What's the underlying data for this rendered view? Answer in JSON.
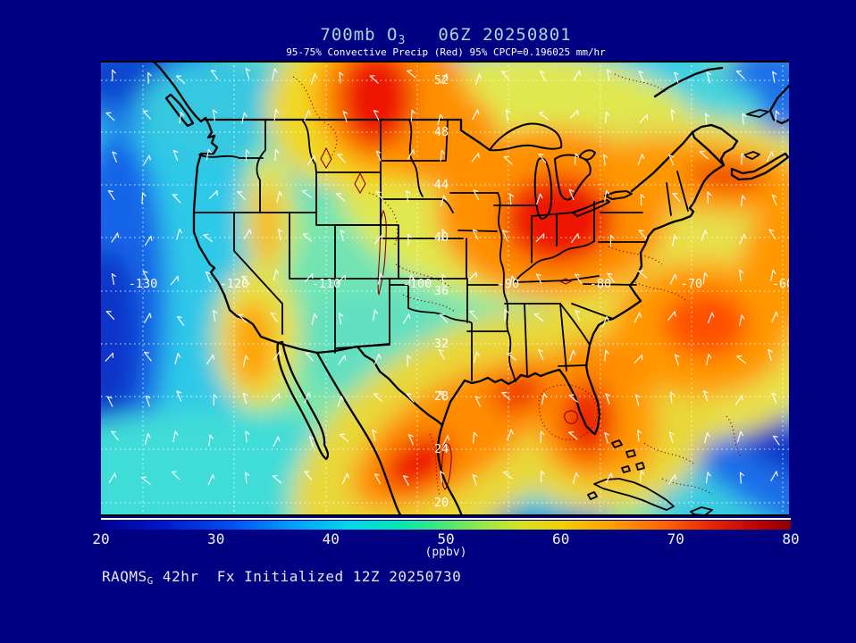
{
  "header": {
    "title_main": "700mb O",
    "title_sub": "3",
    "title_date": "06Z 20250801",
    "subtitle": "95-75% Convective Precip (Red) 95% CPCP=0.196025 mm/hr"
  },
  "map": {
    "lat_labels": [
      "52",
      "48",
      "44",
      "40",
      "36",
      "32",
      "28",
      "24",
      "20"
    ],
    "lon_labels": [
      "-130",
      "-120",
      "-110",
      "-100",
      "-90",
      "-80",
      "-70",
      "-60"
    ]
  },
  "colorbar": {
    "ticks": [
      "20",
      "30",
      "40",
      "50",
      "60",
      "70",
      "80"
    ],
    "unit": "(ppbv)",
    "range_min": 20,
    "range_max": 80
  },
  "footer": {
    "model": "RAQMS",
    "model_sub": "G",
    "text": " 42hr  Fx Initialized 12Z 20250730"
  },
  "colors": {
    "background": "#000082",
    "title": "#a6d8d8",
    "text": "#ffffff",
    "precip_contour": "#8b0000"
  }
}
